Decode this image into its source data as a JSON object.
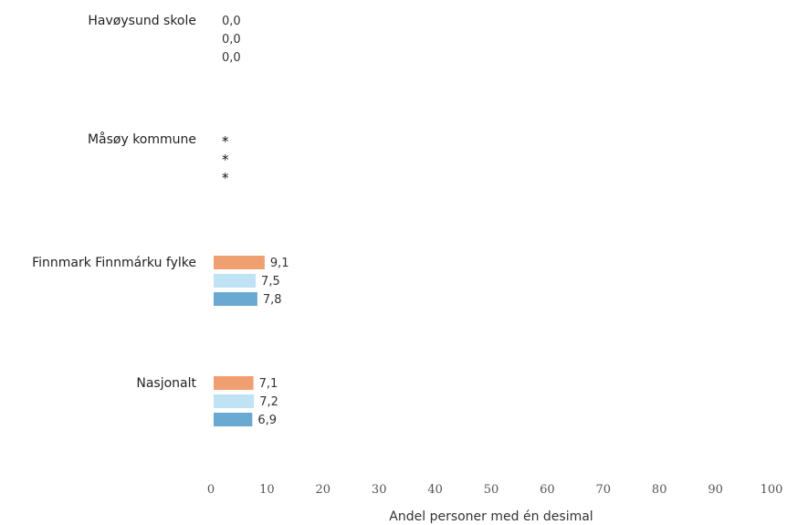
{
  "chart_data": {
    "type": "bar",
    "orientation": "horizontal",
    "xlabel": "Andel personer med én desimal",
    "xlim": [
      0,
      100
    ],
    "xticks": [
      "0",
      "10",
      "20",
      "30",
      "40",
      "50",
      "60",
      "70",
      "80",
      "90",
      "100"
    ],
    "categories": [
      "Havøysund skole",
      "Måsøy kommune",
      "Finnmark Finnmárku fylke",
      "Nasjonalt"
    ],
    "series": [
      {
        "color": "#f0a070",
        "values": [
          0.0,
          null,
          9.1,
          7.1
        ],
        "labels": [
          "0,0",
          "*",
          "9,1",
          "7,1"
        ]
      },
      {
        "color": "#bfe3f5",
        "values": [
          0.0,
          null,
          7.5,
          7.2
        ],
        "labels": [
          "0,0",
          "*",
          "7,5",
          "7,2"
        ]
      },
      {
        "color": "#6aaad2",
        "values": [
          0.0,
          null,
          7.8,
          6.9
        ],
        "labels": [
          "0,0",
          "*",
          "7,8",
          "6,9"
        ]
      }
    ]
  }
}
